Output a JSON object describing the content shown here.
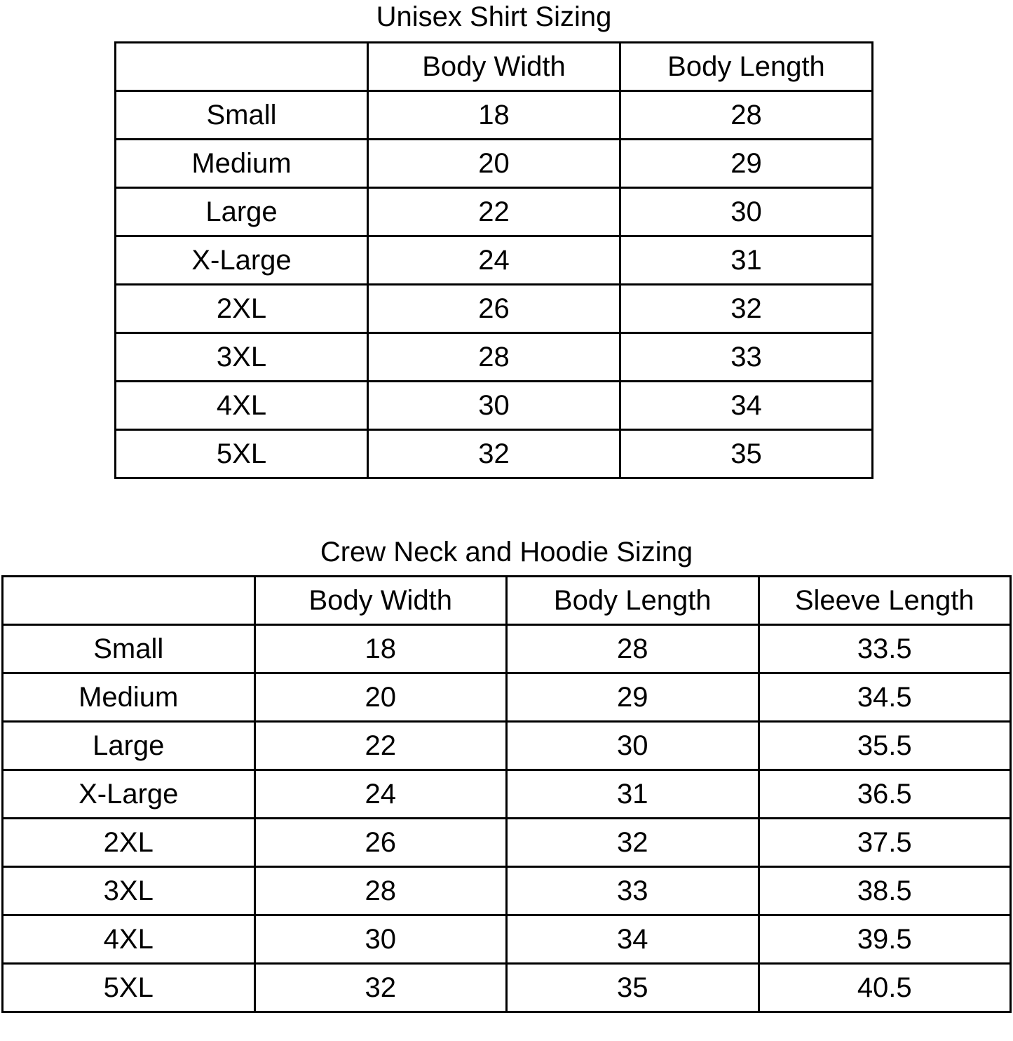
{
  "tables": [
    {
      "title": "Unisex Shirt Sizing",
      "headers": [
        "",
        "Body Width",
        "Body Length"
      ],
      "rows": [
        [
          "Small",
          "18",
          "28"
        ],
        [
          "Medium",
          "20",
          "29"
        ],
        [
          "Large",
          "22",
          "30"
        ],
        [
          "X-Large",
          "24",
          "31"
        ],
        [
          "2XL",
          "26",
          "32"
        ],
        [
          "3XL",
          "28",
          "33"
        ],
        [
          "4XL",
          "30",
          "34"
        ],
        [
          "5XL",
          "32",
          "35"
        ]
      ]
    },
    {
      "title": "Crew Neck and Hoodie Sizing",
      "headers": [
        "",
        "Body Width",
        "Body Length",
        "Sleeve Length"
      ],
      "rows": [
        [
          "Small",
          "18",
          "28",
          "33.5"
        ],
        [
          "Medium",
          "20",
          "29",
          "34.5"
        ],
        [
          "Large",
          "22",
          "30",
          "35.5"
        ],
        [
          "X-Large",
          "24",
          "31",
          "36.5"
        ],
        [
          "2XL",
          "26",
          "32",
          "37.5"
        ],
        [
          "3XL",
          "28",
          "33",
          "38.5"
        ],
        [
          "4XL",
          "30",
          "34",
          "39.5"
        ],
        [
          "5XL",
          "32",
          "35",
          "40.5"
        ]
      ]
    }
  ]
}
